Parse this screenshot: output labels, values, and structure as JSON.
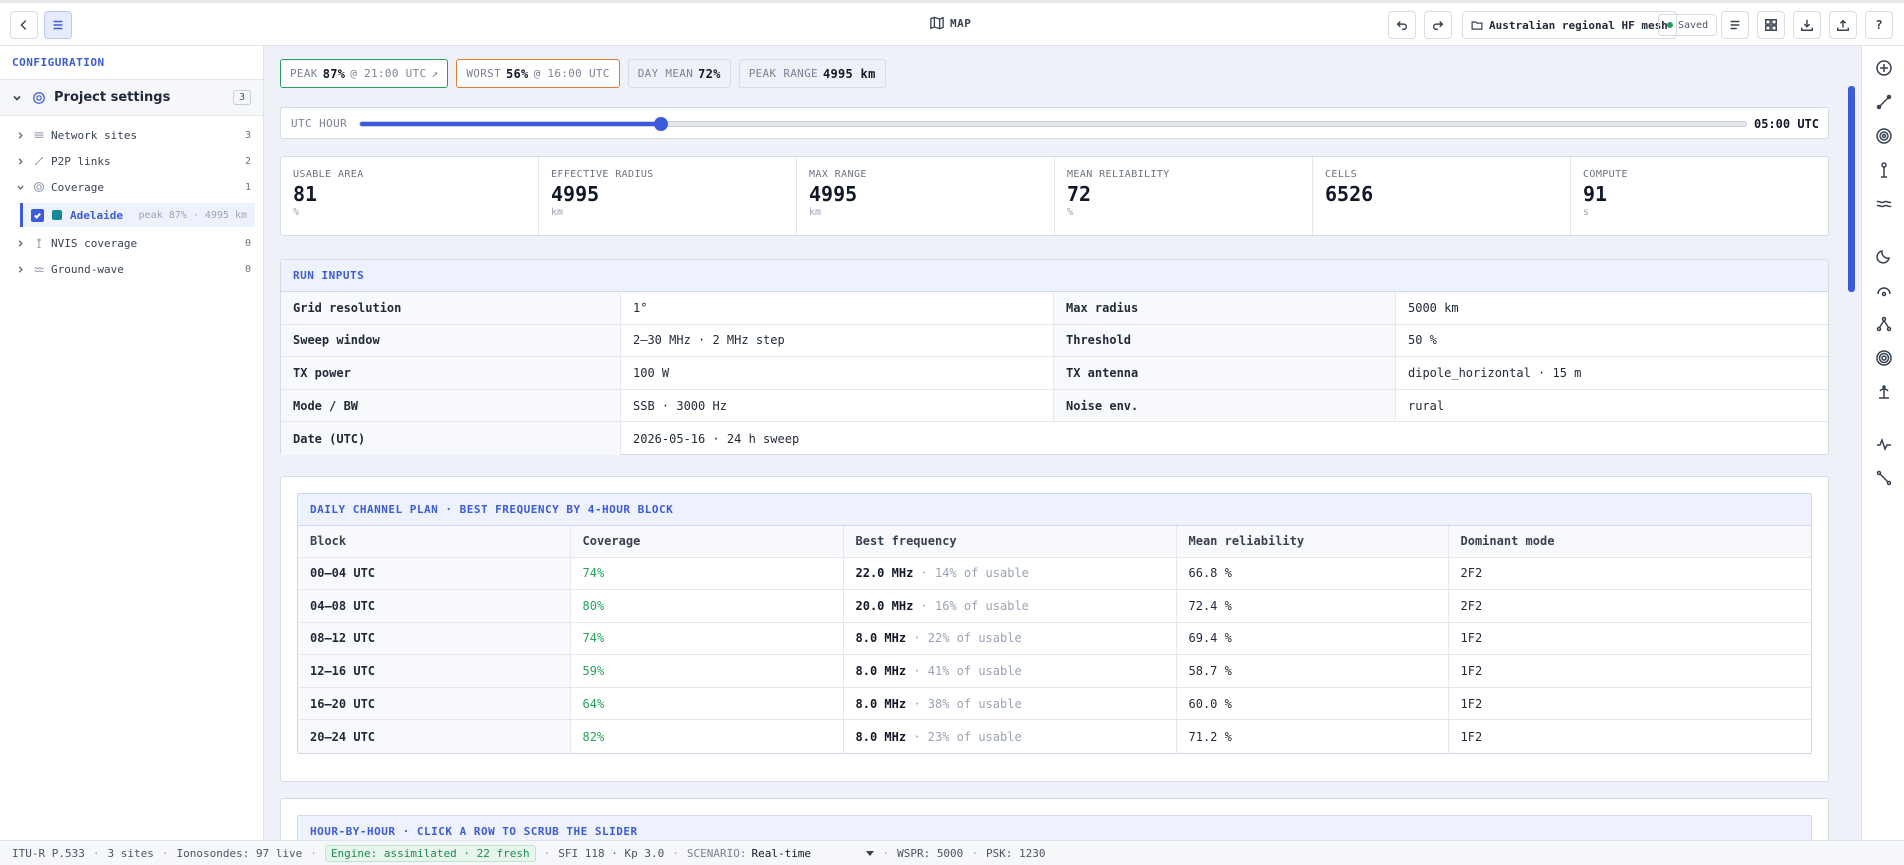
{
  "header": {
    "title": "MAP",
    "project_name": "Australian regional HF mesh",
    "saved_label": "Saved"
  },
  "sidebar": {
    "heading": "CONFIGURATION",
    "group": {
      "label": "Project settings",
      "count": "3"
    },
    "items": [
      {
        "label": "Network sites",
        "count": "3"
      },
      {
        "label": "P2P links",
        "count": "2"
      },
      {
        "label": "Coverage",
        "count": "1"
      },
      {
        "label": "NVIS coverage",
        "count": "0"
      },
      {
        "label": "Ground-wave",
        "count": "0"
      }
    ],
    "coverage_entry": {
      "name": "Adelaide",
      "meta": "peak 87% · 4995 km",
      "color": "#138a9a"
    }
  },
  "chips": {
    "peak": {
      "label": "PEAK",
      "value": "87%",
      "detail": "@ 21:00 UTC",
      "arrow": "↗"
    },
    "worst": {
      "label": "WORST",
      "value": "56%",
      "detail": "@ 16:00 UTC"
    },
    "day_mean": {
      "label": "DAY MEAN",
      "value": "72%"
    },
    "peak_range": {
      "label": "PEAK RANGE",
      "value": "4995 km"
    }
  },
  "slider": {
    "label": "UTC HOUR",
    "value_label": "05:00 UTC",
    "hour": 5,
    "min": 0,
    "max": 23
  },
  "stats": [
    {
      "key": "USABLE AREA",
      "value": "81",
      "unit": "%"
    },
    {
      "key": "EFFECTIVE RADIUS",
      "value": "4995",
      "unit": "km"
    },
    {
      "key": "MAX RANGE",
      "value": "4995",
      "unit": "km"
    },
    {
      "key": "MEAN RELIABILITY",
      "value": "72",
      "unit": "%"
    },
    {
      "key": "CELLS",
      "value": "6526",
      "unit": ""
    },
    {
      "key": "COMPUTE",
      "value": "91",
      "unit": "s"
    }
  ],
  "run_inputs": {
    "title": "RUN INPUTS",
    "rows": [
      {
        "k1": "Grid resolution",
        "v1": "1°",
        "k2": "Max radius",
        "v2": "5000 km"
      },
      {
        "k1": "Sweep window",
        "v1": "2–30 MHz · 2 MHz step",
        "k2": "Threshold",
        "v2": "50 %"
      },
      {
        "k1": "TX power",
        "v1": "100 W",
        "k2": "TX antenna",
        "v2": "dipole_horizontal · 15 m"
      },
      {
        "k1": "Mode / BW",
        "v1": "SSB · 3000 Hz",
        "k2": "Noise env.",
        "v2": "rural"
      },
      {
        "k1": "Date (UTC)",
        "v1": "2026-05-16 · 24 h sweep"
      }
    ]
  },
  "channel_plan": {
    "title": "DAILY CHANNEL PLAN · BEST FREQUENCY BY 4-HOUR BLOCK",
    "columns": [
      "Block",
      "Coverage",
      "Best frequency",
      "Mean reliability",
      "Dominant mode"
    ],
    "rows": [
      {
        "block": "00–04 UTC",
        "coverage": "74%",
        "freq": "22.0 MHz",
        "share": "· 14% of usable",
        "reliability": "66.8 %",
        "mode": "2F2"
      },
      {
        "block": "04–08 UTC",
        "coverage": "80%",
        "freq": "20.0 MHz",
        "share": "· 16% of usable",
        "reliability": "72.4 %",
        "mode": "2F2"
      },
      {
        "block": "08–12 UTC",
        "coverage": "74%",
        "freq": "8.0 MHz",
        "share": "· 22% of usable",
        "reliability": "69.4 %",
        "mode": "1F2"
      },
      {
        "block": "12–16 UTC",
        "coverage": "59%",
        "freq": "8.0 MHz",
        "share": "· 41% of usable",
        "reliability": "58.7 %",
        "mode": "1F2"
      },
      {
        "block": "16–20 UTC",
        "coverage": "64%",
        "freq": "8.0 MHz",
        "share": "· 38% of usable",
        "reliability": "60.0 %",
        "mode": "1F2"
      },
      {
        "block": "20–24 UTC",
        "coverage": "82%",
        "freq": "8.0 MHz",
        "share": "· 23% of usable",
        "reliability": "71.2 %",
        "mode": "1F2"
      }
    ]
  },
  "hourly": {
    "title": "HOUR-BY-HOUR · CLICK A ROW TO SCRUB THE SLIDER"
  },
  "status": {
    "model": "ITU-R P.533",
    "sites": "3 sites",
    "ionosondes": "Ionosondes: 97 live",
    "engine": "Engine: assimilated · 22 fresh",
    "indices": "SFI 118 · Kp 3.0",
    "scenario_label": "SCENARIO:",
    "scenario_value": "Real-time",
    "wspr": "WSPR: 5000",
    "psk": "PSK: 1230"
  },
  "colors": {
    "accent": "#3b5bdb",
    "good": "#22a35b",
    "peak_border": "#2f9e5c",
    "worst_border": "#e07b39"
  },
  "icons": {
    "topbar_left": [
      "back-icon",
      "menu-icon"
    ],
    "topbar_right": [
      "undo-icon",
      "redo-icon",
      "list-icon",
      "grid-icon",
      "download-icon",
      "upload-icon",
      "help-icon"
    ],
    "rail": [
      "add-circle-icon",
      "link-icon",
      "target-icon",
      "antenna-icon",
      "waves-icon",
      "moon-icon",
      "arc-icon",
      "network-icon",
      "concentric-icon",
      "tower-icon",
      "pulse-icon",
      "path-icon"
    ]
  }
}
